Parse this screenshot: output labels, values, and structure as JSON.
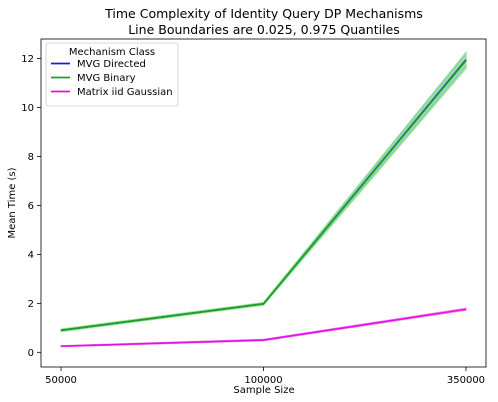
{
  "chart_data": {
    "type": "line",
    "title": "Time Complexity of Identity Query DP Mechanisms",
    "subtitle": "Line Boundaries are 0.025, 0.975 Quantiles",
    "xlabel": "Sample Size",
    "ylabel": "Mean Time (s)",
    "categories": [
      "50000",
      "100000",
      "350000"
    ],
    "ylim": [
      -0.6,
      12.8
    ],
    "yticks": [
      0,
      2,
      4,
      6,
      8,
      10,
      12
    ],
    "grid": false,
    "legend": {
      "title": "Mechanism Class",
      "placement": "top-left"
    },
    "series": [
      {
        "name": "MVG Directed",
        "color": "#1f1fcf",
        "band_color": "#7aa0e0",
        "values": [
          0.9,
          1.98,
          11.95
        ],
        "lower": [
          0.86,
          1.94,
          11.7
        ],
        "upper": [
          0.94,
          2.02,
          12.2
        ]
      },
      {
        "name": "MVG Binary",
        "color": "#1ca31c",
        "band_color": "#90e690",
        "values": [
          0.9,
          1.98,
          11.92
        ],
        "lower": [
          0.85,
          1.93,
          11.6
        ],
        "upper": [
          0.95,
          2.03,
          12.25
        ]
      },
      {
        "name": "Matrix iid Gaussian",
        "color": "#e60ee6",
        "band_color": "#f08cf0",
        "values": [
          0.25,
          0.5,
          1.76
        ],
        "lower": [
          0.23,
          0.47,
          1.72
        ],
        "upper": [
          0.27,
          0.53,
          1.8
        ]
      }
    ]
  }
}
